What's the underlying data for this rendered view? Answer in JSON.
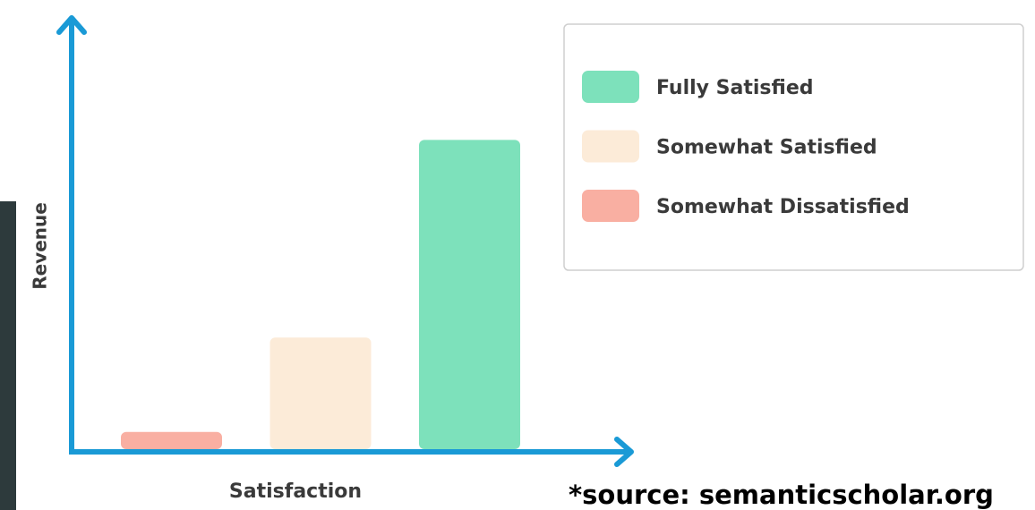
{
  "chart_data": {
    "type": "bar",
    "x_label": "Satisfaction",
    "y_label": "Revenue",
    "categories": [
      "Somewhat Dissatisfied",
      "Somewhat Satisfied",
      "Fully Satisfied"
    ],
    "values": [
      4,
      26,
      72
    ],
    "colors": [
      "#f9afa2",
      "#fcebd8",
      "#7de1bb"
    ],
    "legend_order": [
      2,
      1,
      0
    ],
    "ylim": [
      0,
      100
    ],
    "axis_color": "#1a9ad6",
    "source": "*source: semanticscholar.org"
  }
}
